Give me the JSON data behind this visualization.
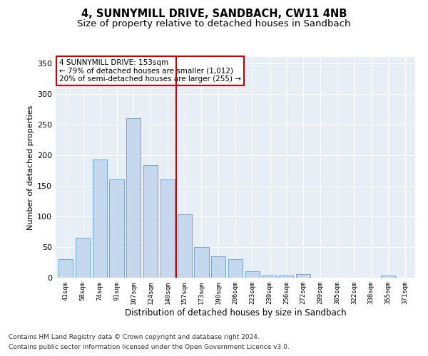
{
  "title": "4, SUNNYMILL DRIVE, SANDBACH, CW11 4NB",
  "subtitle": "Size of property relative to detached houses in Sandbach",
  "xlabel": "Distribution of detached houses by size in Sandbach",
  "ylabel": "Number of detached properties",
  "categories": [
    "41sqm",
    "58sqm",
    "74sqm",
    "91sqm",
    "107sqm",
    "124sqm",
    "140sqm",
    "157sqm",
    "173sqm",
    "190sqm",
    "206sqm",
    "223sqm",
    "239sqm",
    "256sqm",
    "272sqm",
    "289sqm",
    "305sqm",
    "322sqm",
    "338sqm",
    "355sqm",
    "371sqm"
  ],
  "values": [
    30,
    65,
    193,
    160,
    260,
    183,
    160,
    103,
    50,
    35,
    30,
    11,
    4,
    4,
    6,
    0,
    0,
    0,
    0,
    3,
    0
  ],
  "bar_color": "#c5d8ed",
  "bar_edge_color": "#5a9fd4",
  "vline_x": 6.5,
  "vline_color": "#cc0000",
  "annotation_line1": "4 SUNNYMILL DRIVE: 153sqm",
  "annotation_line2": "← 79% of detached houses are smaller (1,012)",
  "annotation_line3": "20% of semi-detached houses are larger (255) →",
  "annotation_box_color": "#ffffff",
  "annotation_box_edge": "#cc0000",
  "ylim": [
    0,
    360
  ],
  "yticks": [
    0,
    50,
    100,
    150,
    200,
    250,
    300,
    350
  ],
  "bg_color": "#e8eef6",
  "footer1": "Contains HM Land Registry data © Crown copyright and database right 2024.",
  "footer2": "Contains public sector information licensed under the Open Government Licence v3.0.",
  "title_fontsize": 10.5,
  "subtitle_fontsize": 9.5,
  "footer_fontsize": 6.5
}
